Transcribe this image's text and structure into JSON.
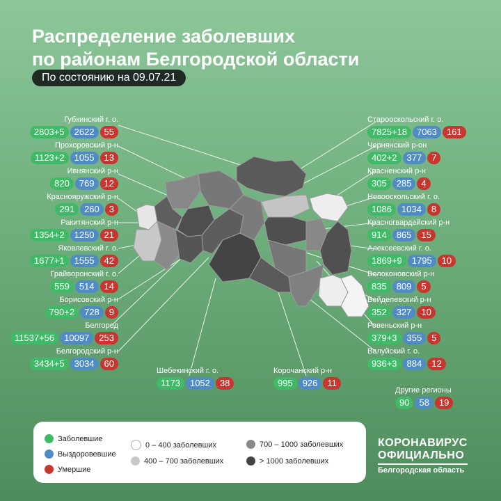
{
  "header": {
    "title_line1": "Распределение заболевших",
    "title_line2": "по районам Белгородской области",
    "date_label": "По состоянию на 09.07.21"
  },
  "districts": [
    {
      "name": "Губкинский г. о.",
      "sick": "2803+5",
      "recovered": "2622",
      "deaths": "55"
    },
    {
      "name": "Прохоровский р-н",
      "sick": "1123+2",
      "recovered": "1055",
      "deaths": "13"
    },
    {
      "name": "Ивнянский р-н",
      "sick": "820",
      "recovered": "769",
      "deaths": "12"
    },
    {
      "name": "Краснояружский р-н",
      "sick": "291",
      "recovered": "260",
      "deaths": "3"
    },
    {
      "name": "Ракитянский р-н",
      "sick": "1354+2",
      "recovered": "1250",
      "deaths": "21"
    },
    {
      "name": "Яковлевский г. о.",
      "sick": "1677+1",
      "recovered": "1555",
      "deaths": "42"
    },
    {
      "name": "Грайворонский г. о.",
      "sick": "559",
      "recovered": "514",
      "deaths": "14"
    },
    {
      "name": "Борисовский р-н",
      "sick": "790+2",
      "recovered": "728",
      "deaths": "9"
    },
    {
      "name": "Белгород",
      "sick": "11537+56",
      "recovered": "10097",
      "deaths": "253"
    },
    {
      "name": "Белгородский р-н",
      "sick": "3434+5",
      "recovered": "3034",
      "deaths": "60"
    },
    {
      "name": "Шебекинский г. о.",
      "sick": "1173",
      "recovered": "1052",
      "deaths": "38"
    },
    {
      "name": "Корочанский р-н",
      "sick": "995",
      "recovered": "926",
      "deaths": "11"
    },
    {
      "name": "Старооскольский г. о.",
      "sick": "7825+18",
      "recovered": "7063",
      "deaths": "161"
    },
    {
      "name": "Чернянский р-он",
      "sick": "402+2",
      "recovered": "377",
      "deaths": "7"
    },
    {
      "name": "Красненский р-н",
      "sick": "305",
      "recovered": "285",
      "deaths": "4"
    },
    {
      "name": "Новооскольский г. о.",
      "sick": "1086",
      "recovered": "1034",
      "deaths": "8"
    },
    {
      "name": "Красногвардейский р-н",
      "sick": "914",
      "recovered": "865",
      "deaths": "15"
    },
    {
      "name": "Алексеевский г. о.",
      "sick": "1869+9",
      "recovered": "1795",
      "deaths": "10"
    },
    {
      "name": "Волоконовский р-н",
      "sick": "835",
      "recovered": "809",
      "deaths": "5"
    },
    {
      "name": "Вейделевский р-н",
      "sick": "352",
      "recovered": "327",
      "deaths": "10"
    },
    {
      "name": "Ровеньский р-н",
      "sick": "379+3",
      "recovered": "355",
      "deaths": "5"
    },
    {
      "name": "Валуйский г. о.",
      "sick": "936+3",
      "recovered": "884",
      "deaths": "12"
    },
    {
      "name": "Другие регионы",
      "sick": "90",
      "recovered": "58",
      "deaths": "19"
    }
  ],
  "legend": {
    "sick": "Заболевшие",
    "recovered": "Выздоровевшие",
    "deaths": "Умершие",
    "range_1": "0 – 400 заболевших",
    "range_2": "400 – 700 заболевших",
    "range_3": "700 – 1000 заболевших",
    "range_4": "> 1000 заболевших"
  },
  "colors": {
    "sick": "#3fba66",
    "recovered": "#4f8cc5",
    "deaths": "#c7372f",
    "background": "#6fae7d"
  },
  "brand": {
    "line1": "КОРОНАВИРУС",
    "line2": "ОФИЦИАЛЬНО",
    "line3": "Белгородская область"
  }
}
